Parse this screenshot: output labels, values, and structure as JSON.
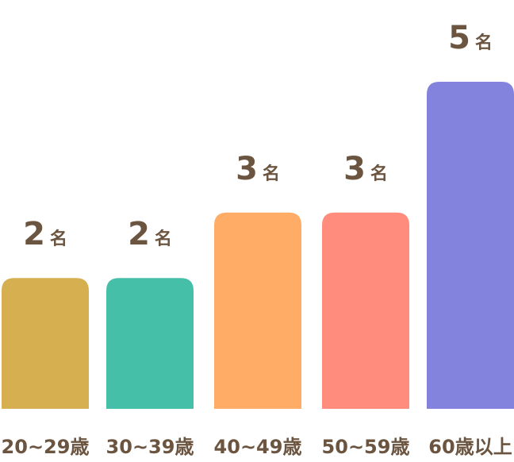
{
  "chart_data": {
    "type": "bar",
    "categories": [
      "20~29歳",
      "30~39歳",
      "40~49歳",
      "50~59歳",
      "60歳以上"
    ],
    "values": [
      2,
      2,
      3,
      3,
      5
    ],
    "value_unit": "名",
    "bar_colors": [
      "#d6b050",
      "#46bfa8",
      "#ffad66",
      "#ff8c7c",
      "#8383dd"
    ],
    "text_color": "#6b5540",
    "title": "",
    "xlabel": "",
    "ylabel": "",
    "ylim": [
      0,
      5
    ],
    "grid": false,
    "legend": "none"
  }
}
